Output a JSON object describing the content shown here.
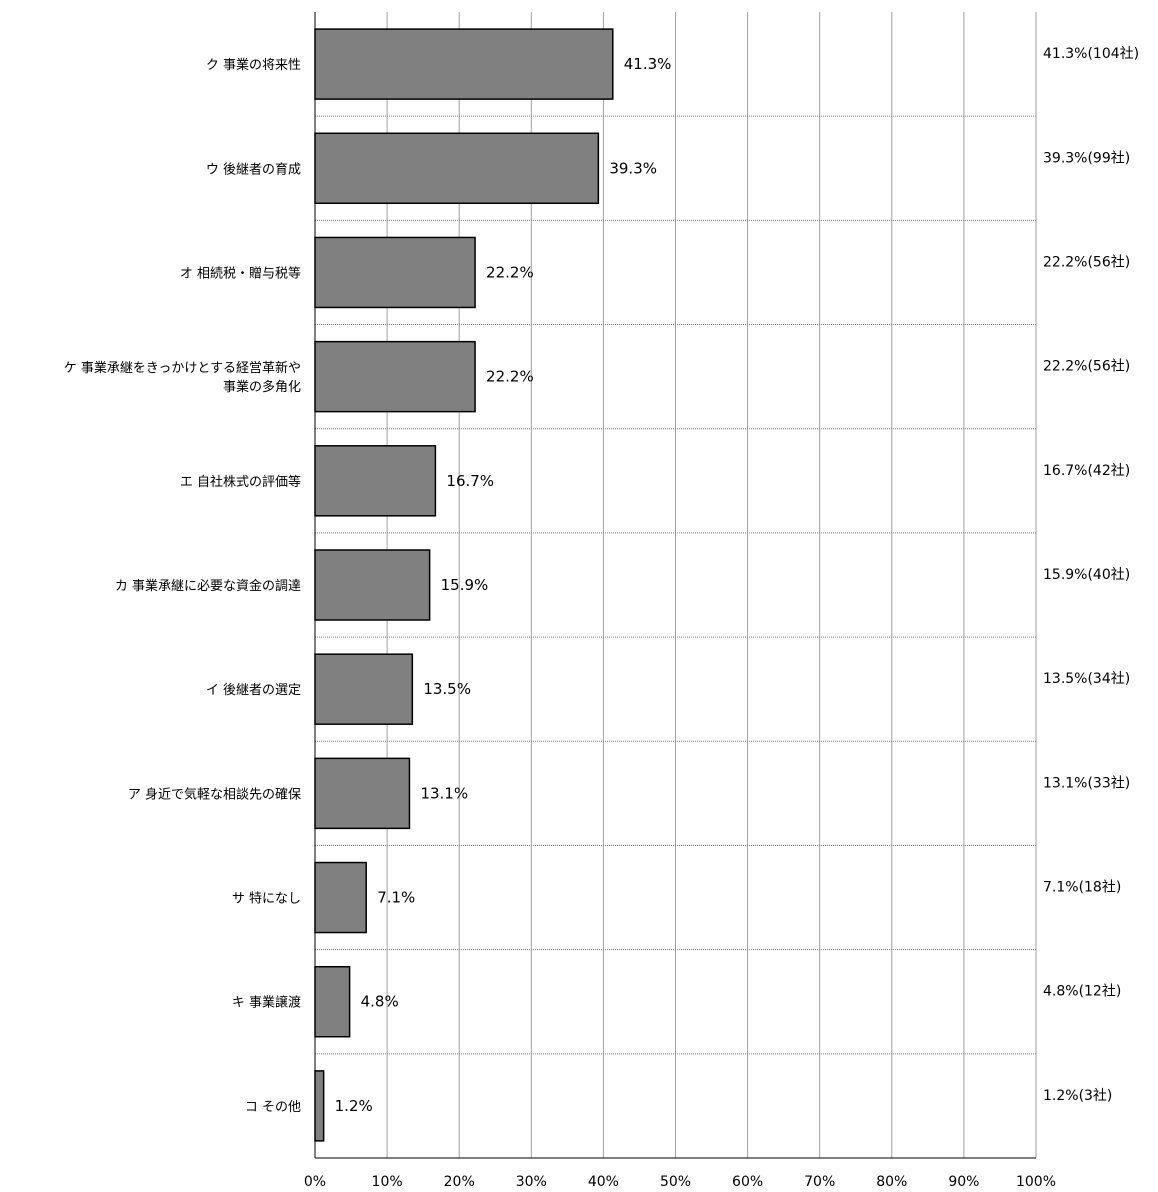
{
  "chart_data": {
    "type": "bar",
    "orientation": "horizontal",
    "categories": [
      [
        "ク 事業の将来性"
      ],
      [
        "ウ 後継者の育成"
      ],
      [
        "オ 相続税・贈与税等"
      ],
      [
        "ケ 事業承継をきっかけとする経営革新や",
        "事業の多角化"
      ],
      [
        "エ 自社株式の評価等"
      ],
      [
        "カ 事業承継に必要な資金の調達"
      ],
      [
        "イ 後継者の選定"
      ],
      [
        "ア 身近で気軽な相談先の確保"
      ],
      [
        "サ 特になし"
      ],
      [
        "キ 事業譲渡"
      ],
      [
        "コ その他"
      ]
    ],
    "values": [
      41.3,
      39.3,
      22.2,
      22.2,
      16.7,
      15.9,
      13.5,
      13.1,
      7.1,
      4.8,
      1.2
    ],
    "value_labels": [
      "41.3%",
      "39.3%",
      "22.2%",
      "22.2%",
      "16.7%",
      "15.9%",
      "13.5%",
      "13.1%",
      "7.1%",
      "4.8%",
      "1.2%"
    ],
    "count_labels": [
      "41.3%(104社)",
      "39.3%(99社)",
      "22.2%(56社)",
      "22.2%(56社)",
      "16.7%(42社)",
      "15.9%(40社)",
      "13.5%(34社)",
      "13.1%(33社)",
      "7.1%(18社)",
      "4.8%(12社)",
      "1.2%(3社)"
    ],
    "xlim": [
      0,
      100
    ],
    "x_ticks": [
      "0%",
      "10%",
      "20%",
      "30%",
      "40%",
      "50%",
      "60%",
      "70%",
      "80%",
      "90%",
      "100%"
    ],
    "grid": true,
    "bar_color": "#808080",
    "bar_edge_color": "#000000",
    "title": "",
    "xlabel": "",
    "ylabel": ""
  }
}
